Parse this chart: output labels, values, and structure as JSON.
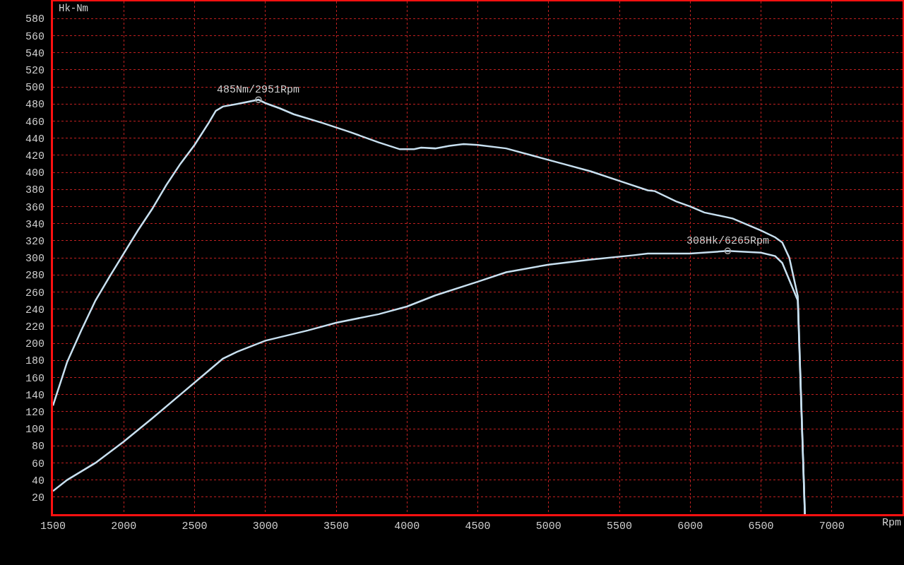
{
  "chart_data": {
    "type": "line",
    "xlabel": "Rpm",
    "ylabel": "Hk-Nm",
    "xlim": [
      1500,
      7500
    ],
    "xticks": [
      1500,
      2000,
      2500,
      3000,
      3500,
      4000,
      4500,
      5000,
      5500,
      6000,
      6500,
      7000
    ],
    "ylim": [
      0,
      600
    ],
    "yticks": [
      20,
      40,
      60,
      80,
      100,
      120,
      140,
      160,
      180,
      200,
      220,
      240,
      260,
      280,
      300,
      320,
      340,
      360,
      380,
      400,
      420,
      440,
      460,
      480,
      500,
      520,
      540,
      560,
      580
    ],
    "grid": true,
    "marker": "none",
    "line_style": "solid",
    "series": [
      {
        "color": "#c8e0f0",
        "x": [
          1500,
          1600,
          1700,
          1800,
          1900,
          2000,
          2100,
          2200,
          2300,
          2400,
          2500,
          2600,
          2650,
          2700,
          2800,
          2951,
          3000,
          3100,
          3200,
          3400,
          3600,
          3800,
          3950,
          4050,
          4100,
          4200,
          4300,
          4400,
          4500,
          4700,
          4900,
          5100,
          5300,
          5500,
          5700,
          5750,
          5900,
          6000,
          6100,
          6300,
          6500,
          6600,
          6650,
          6700,
          6760,
          6810
        ],
        "values": [
          127,
          178,
          215,
          250,
          278,
          305,
          332,
          357,
          385,
          410,
          432,
          458,
          472,
          477,
          480,
          485,
          481,
          475,
          468,
          458,
          447,
          435,
          427,
          427,
          429,
          428,
          431,
          433,
          432,
          428,
          419,
          410,
          401,
          390,
          379,
          378,
          366,
          360,
          353,
          346,
          332,
          324,
          318,
          300,
          255,
          0
        ]
      },
      {
        "color": "#c8e0f0",
        "x": [
          1500,
          1600,
          1800,
          2000,
          2200,
          2400,
          2600,
          2700,
          2800,
          3000,
          3300,
          3500,
          3800,
          4000,
          4200,
          4500,
          4700,
          5000,
          5300,
          5600,
          5700,
          6000,
          6265,
          6500,
          6600,
          6650,
          6760,
          6810
        ],
        "values": [
          27,
          40,
          60,
          85,
          112,
          140,
          168,
          182,
          190,
          203,
          215,
          224,
          234,
          243,
          256,
          272,
          283,
          292,
          298,
          303,
          305,
          305,
          308,
          306,
          302,
          294,
          250,
          0
        ]
      }
    ],
    "annotations": [
      {
        "text": "485Nm/2951Rpm",
        "x": 2951,
        "y": 485
      },
      {
        "text": "308Hk/6265Rpm",
        "x": 6265,
        "y": 308
      }
    ]
  }
}
